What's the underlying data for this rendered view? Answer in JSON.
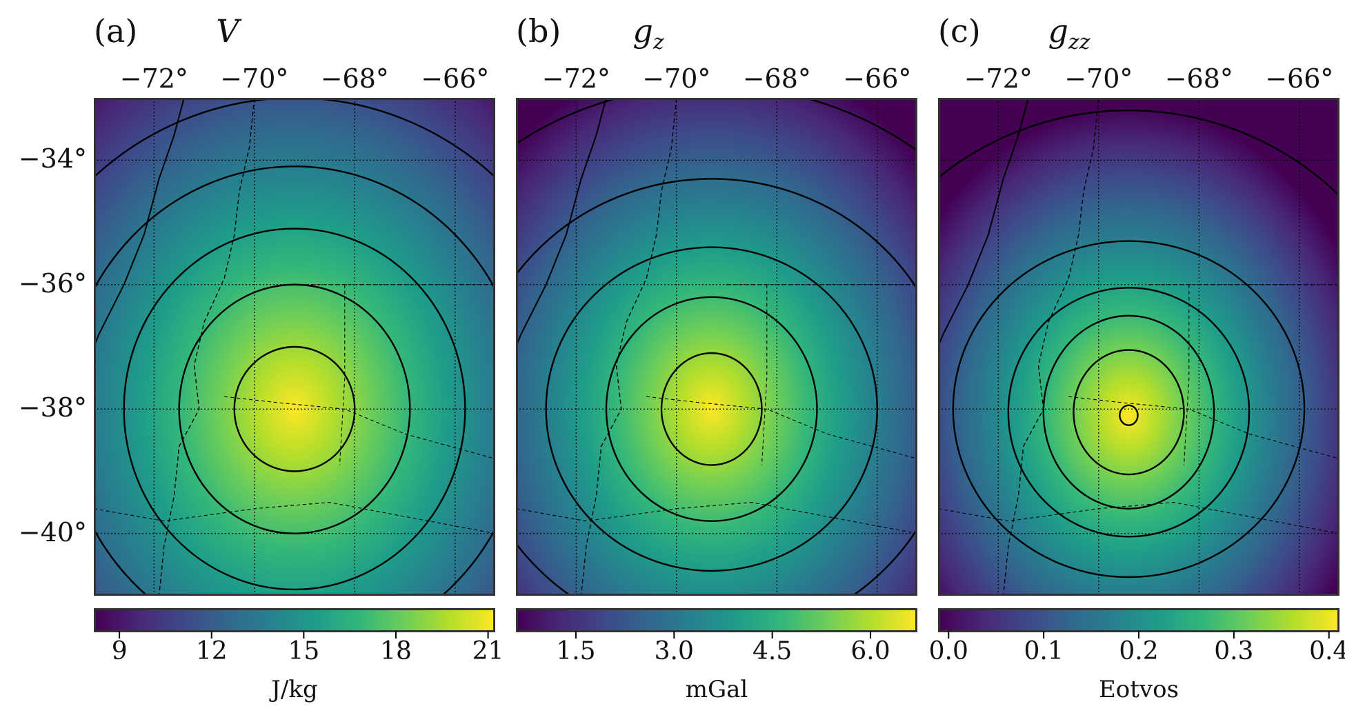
{
  "colors": {
    "viridis": [
      "#440154",
      "#482878",
      "#3e4989",
      "#31688e",
      "#26828e",
      "#1f9e89",
      "#35b779",
      "#6ece58",
      "#b5de2b",
      "#fde725"
    ],
    "contour": "#000000",
    "frame": "#333333"
  },
  "chart_data": [
    {
      "type": "heatmap",
      "panel_letter": "(a)",
      "title": "V",
      "x_ticks": [
        "−72°",
        "−70°",
        "−68°",
        "−66°"
      ],
      "y_ticks": [
        "−34°",
        "−36°",
        "−38°",
        "−40°"
      ],
      "xlim": [
        -73.2,
        -65.2
      ],
      "ylim": [
        -41.0,
        -33.0
      ],
      "grid": true,
      "field": {
        "peak_lon": -69.2,
        "peak_lat": -38.0,
        "max": 21.0,
        "min": 8.2
      },
      "contours": [
        {
          "cx": -69.2,
          "cy": -38.0,
          "rx": 1.2,
          "ry": 1.0
        },
        {
          "cx": -69.2,
          "cy": -38.0,
          "rx": 2.3,
          "ry": 2.0
        },
        {
          "cx": -69.2,
          "cy": -38.0,
          "rx": 3.4,
          "ry": 2.9
        },
        {
          "cx": -69.2,
          "cy": -38.0,
          "rx": 4.6,
          "ry": 3.9
        },
        {
          "cx": -69.2,
          "cy": -38.0,
          "rx": 6.0,
          "ry": 5.0
        }
      ],
      "colorbar": {
        "ticks": [
          "9",
          "12",
          "15",
          "18",
          "21"
        ],
        "tick_values": [
          9,
          12,
          15,
          18,
          21
        ],
        "range": [
          8.2,
          21.2
        ],
        "label": "J/kg"
      }
    },
    {
      "type": "heatmap",
      "panel_letter": "(b)",
      "title": "g",
      "title_sub": "z",
      "x_ticks": [
        "−72°",
        "−70°",
        "−68°",
        "−66°"
      ],
      "y_ticks": [],
      "xlim": [
        -73.2,
        -65.2
      ],
      "ylim": [
        -41.0,
        -33.0
      ],
      "grid": true,
      "field": {
        "peak_lon": -69.3,
        "peak_lat": -38.0,
        "max": 6.7,
        "min": 0.6
      },
      "contours": [
        {
          "cx": -69.3,
          "cy": -38.0,
          "rx": 1.0,
          "ry": 0.9
        },
        {
          "cx": -69.3,
          "cy": -38.0,
          "rx": 2.1,
          "ry": 1.8
        },
        {
          "cx": -69.3,
          "cy": -38.0,
          "rx": 3.3,
          "ry": 2.6
        },
        {
          "cx": -69.3,
          "cy": -38.0,
          "rx": 4.8,
          "ry": 3.7
        },
        {
          "cx": -69.3,
          "cy": -38.0,
          "rx": 6.8,
          "ry": 5.2
        }
      ],
      "colorbar": {
        "ticks": [
          "1.5",
          "3.0",
          "4.5",
          "6.0"
        ],
        "tick_values": [
          1.5,
          3.0,
          4.5,
          6.0
        ],
        "range": [
          0.6,
          6.7
        ],
        "label": "mGal"
      }
    },
    {
      "type": "heatmap",
      "panel_letter": "(c)",
      "title": "g",
      "title_sub": "zz",
      "x_ticks": [
        "−72°",
        "−70°",
        "−68°",
        "−66°"
      ],
      "y_ticks": [],
      "xlim": [
        -73.2,
        -65.2
      ],
      "ylim": [
        -41.0,
        -33.0
      ],
      "grid": true,
      "field": {
        "peak_lon": -69.4,
        "peak_lat": -38.1,
        "max": 0.41,
        "min": 0.0
      },
      "contours": [
        {
          "cx": -69.4,
          "cy": -38.1,
          "rx": 0.18,
          "ry": 0.16
        },
        {
          "cx": -69.4,
          "cy": -38.05,
          "rx": 1.1,
          "ry": 1.0
        },
        {
          "cx": -69.4,
          "cy": -38.05,
          "rx": 1.7,
          "ry": 1.55
        },
        {
          "cx": -69.4,
          "cy": -38.05,
          "rx": 2.4,
          "ry": 2.0
        },
        {
          "cx": -69.4,
          "cy": -38.0,
          "rx": 3.5,
          "ry": 2.7
        },
        {
          "cx": -69.4,
          "cy": -38.0,
          "rx": 6.0,
          "ry": 4.8
        }
      ],
      "colorbar": {
        "ticks": [
          "0.0",
          "0.1",
          "0.2",
          "0.3",
          "0.4"
        ],
        "tick_values": [
          0.0,
          0.1,
          0.2,
          0.3,
          0.4
        ],
        "range": [
          -0.01,
          0.41
        ],
        "label": "Eotvos"
      }
    }
  ]
}
